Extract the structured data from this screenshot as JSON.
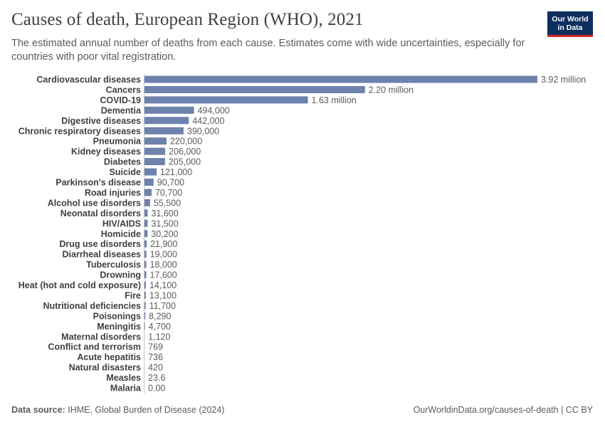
{
  "header": {
    "title": "Causes of death, European Region (WHO), 2021",
    "subtitle": "The estimated annual number of deaths from each cause. Estimates come with wide uncertainties, especially for countries with poor vital registration."
  },
  "logo": {
    "line1": "Our World",
    "line2": "in Data"
  },
  "footer": {
    "source_label": "Data source:",
    "source_text": "IHME, Global Burden of Disease (2024)",
    "url_license": "OurWorldinData.org/causes-of-death | CC BY"
  },
  "colors": {
    "bar": "#6d82ad",
    "axis": "#c8c8c8",
    "label": "#404040",
    "value": "#5b5b5b"
  },
  "chart_data": {
    "type": "bar",
    "orientation": "horizontal",
    "title": "Causes of death, European Region (WHO), 2021",
    "xlabel": "",
    "ylabel": "",
    "categories": [
      "Cardiovascular diseases",
      "Cancers",
      "COVID-19",
      "Dementia",
      "Digestive diseases",
      "Chronic respiratory diseases",
      "Pneumonia",
      "Kidney diseases",
      "Diabetes",
      "Suicide",
      "Parkinson's disease",
      "Road injuries",
      "Alcohol use disorders",
      "Neonatal disorders",
      "HIV/AIDS",
      "Homicide",
      "Drug use disorders",
      "Diarrheal diseases",
      "Tuberculosis",
      "Drowning",
      "Heat (hot and cold exposure)",
      "Fire",
      "Nutritional deficiencies",
      "Poisonings",
      "Meningitis",
      "Maternal disorders",
      "Conflict and terrorism",
      "Acute hepatitis",
      "Natural disasters",
      "Measles",
      "Malaria"
    ],
    "values": [
      3920000,
      2200000,
      1630000,
      494000,
      442000,
      390000,
      220000,
      206000,
      205000,
      121000,
      90700,
      70700,
      55500,
      31600,
      31500,
      30200,
      21900,
      19000,
      18000,
      17600,
      14100,
      13100,
      11700,
      8290,
      4700,
      1120,
      769,
      736,
      420,
      23.6,
      0
    ],
    "value_labels": [
      "3.92 million",
      "2.20 million",
      "1.63 million",
      "494,000",
      "442,000",
      "390,000",
      "220,000",
      "206,000",
      "205,000",
      "121,000",
      "90,700",
      "70,700",
      "55,500",
      "31,600",
      "31,500",
      "30,200",
      "21,900",
      "19,000",
      "18,000",
      "17,600",
      "14,100",
      "13,100",
      "11,700",
      "8,290",
      "4,700",
      "1,120",
      "769",
      "736",
      "420",
      "23.6",
      "0.00"
    ],
    "xlim": [
      0,
      3920000
    ]
  }
}
